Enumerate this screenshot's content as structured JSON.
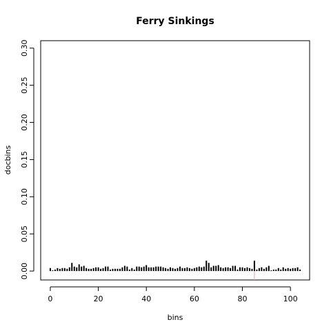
{
  "chart_data": {
    "type": "bar",
    "title": "Ferry Sinkings",
    "xlabel": "bins",
    "ylabel": "docbins",
    "xlim": [
      -4,
      108
    ],
    "ylim": [
      -0.012,
      0.31
    ],
    "xticks": [
      0,
      20,
      40,
      60,
      80,
      100
    ],
    "xtick_labels": [
      "0",
      "20",
      "40",
      "60",
      "80",
      "100"
    ],
    "yticks": [
      0.0,
      0.05,
      0.1,
      0.15,
      0.2,
      0.25,
      0.3
    ],
    "ytick_labels": [
      "0.00",
      "0.05",
      "0.10",
      "0.15",
      "0.20",
      "0.25",
      "0.30"
    ],
    "series": [
      {
        "color": "#000000",
        "x": [
          0,
          1,
          2,
          3,
          4,
          5,
          6,
          7,
          8,
          9,
          10,
          11,
          12,
          13,
          14,
          15,
          16,
          17,
          18,
          19,
          20,
          21,
          22,
          23,
          24,
          25,
          26,
          27,
          28,
          29,
          30,
          31,
          32,
          33,
          34,
          35,
          36,
          37,
          38,
          39,
          40,
          41,
          42,
          43,
          44,
          45,
          46,
          47,
          48,
          49,
          50,
          51,
          52,
          53,
          54,
          55,
          56,
          57,
          58,
          59,
          60,
          61,
          62,
          63,
          64,
          65,
          66,
          67,
          68,
          69,
          70,
          71,
          72,
          73,
          74,
          75,
          76,
          77,
          78,
          79,
          80,
          81,
          82,
          83,
          84,
          85,
          86,
          87,
          88,
          89,
          90,
          91,
          92,
          93,
          94,
          95,
          96,
          97,
          98,
          99,
          100,
          101,
          102,
          103,
          104
        ],
        "values": [
          0.004,
          0.001,
          0.002,
          0.004,
          0.003,
          0.004,
          0.004,
          0.003,
          0.005,
          0.011,
          0.006,
          0.005,
          0.009,
          0.006,
          0.007,
          0.004,
          0.003,
          0.003,
          0.004,
          0.005,
          0.005,
          0.003,
          0.004,
          0.006,
          0.006,
          0.002,
          0.003,
          0.003,
          0.003,
          0.003,
          0.005,
          0.007,
          0.006,
          0.002,
          0.004,
          0.002,
          0.006,
          0.006,
          0.005,
          0.006,
          0.008,
          0.005,
          0.005,
          0.005,
          0.006,
          0.006,
          0.006,
          0.005,
          0.004,
          0.003,
          0.005,
          0.004,
          0.003,
          0.004,
          0.006,
          0.004,
          0.004,
          0.005,
          0.004,
          0.003,
          0.004,
          0.005,
          0.006,
          0.005,
          0.006,
          0.014,
          0.011,
          0.005,
          0.007,
          0.007,
          0.008,
          0.005,
          0.004,
          0.005,
          0.005,
          0.004,
          0.007,
          0.007,
          0.002,
          0.005,
          0.005,
          0.004,
          0.005,
          0.004,
          0.003,
          0.014,
          0.002,
          0.004,
          0.005,
          0.003,
          0.005,
          0.007,
          0.001,
          0.002,
          0.002,
          0.004,
          0.002,
          0.005,
          0.003,
          0.004,
          0.003,
          0.004,
          0.004,
          0.005,
          0.002
        ]
      }
    ],
    "vline": {
      "x": 85,
      "color": "#e8a0a0"
    },
    "grid": false,
    "legend": "none"
  }
}
